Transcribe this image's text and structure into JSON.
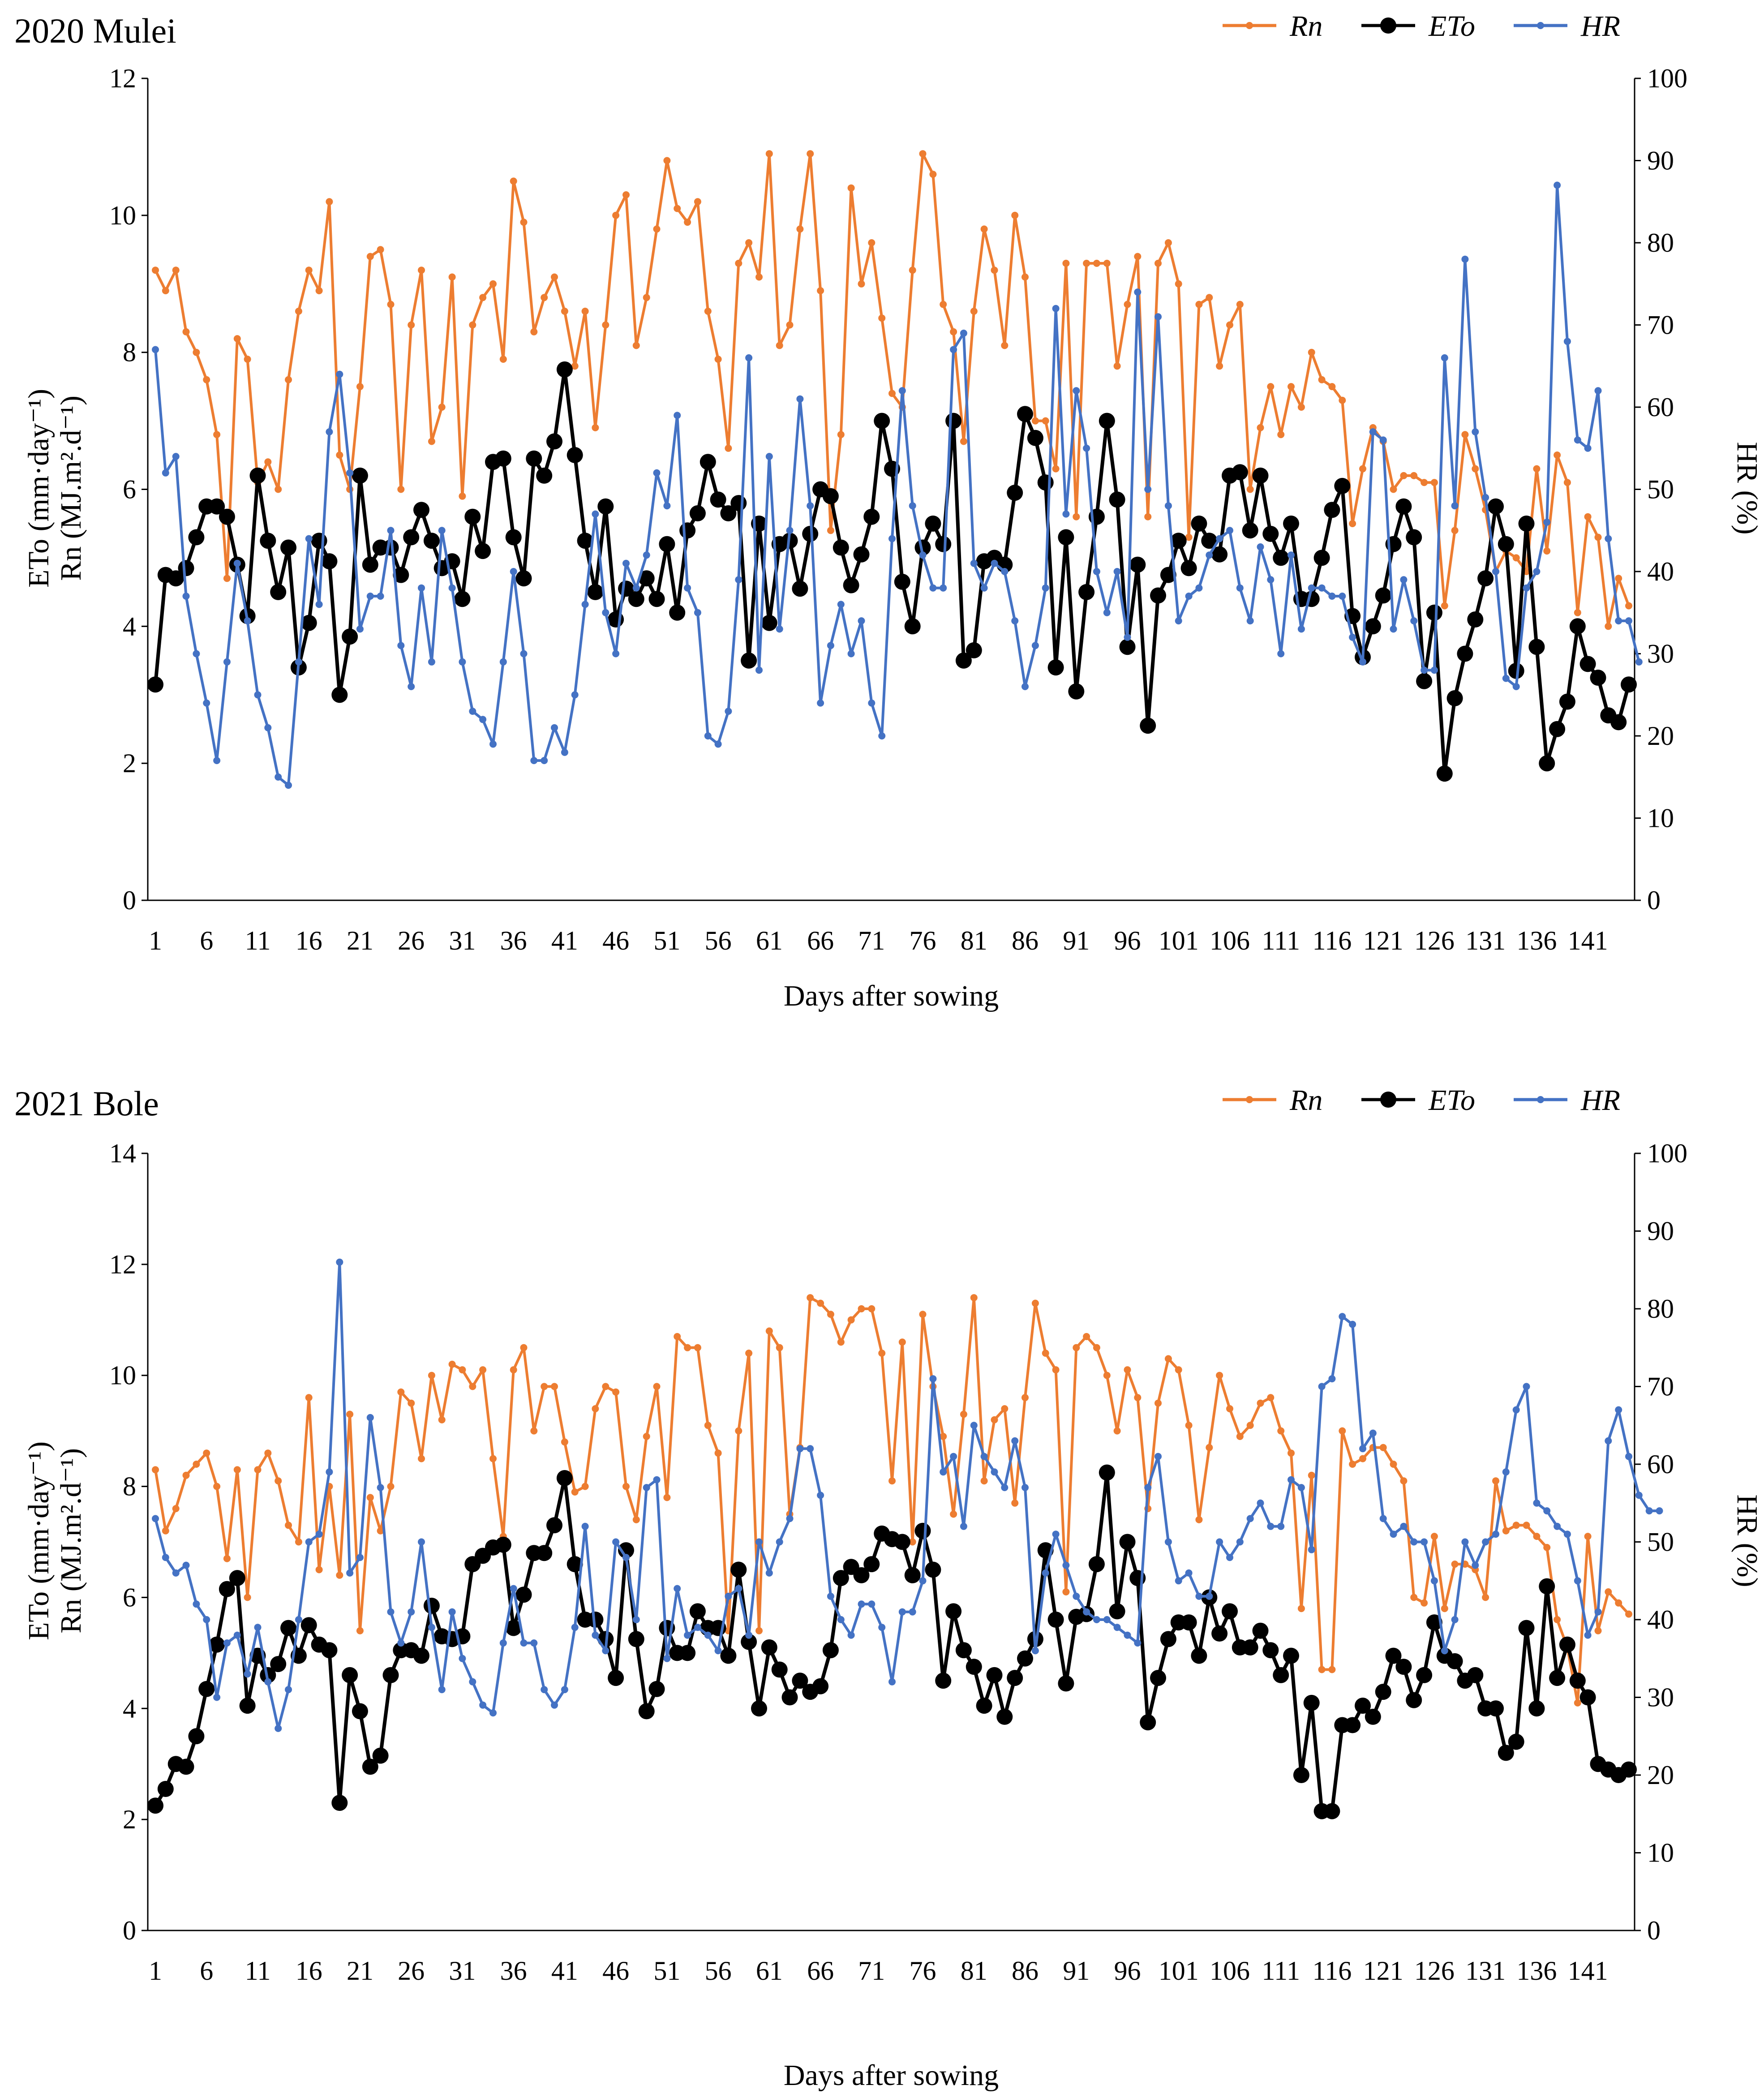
{
  "chart_data": [
    {
      "type": "line",
      "title": "2020  Mulei",
      "xlabel": "Days after sowing",
      "ylabel_line1": "ETo (mm·day⁻¹)",
      "ylabel_line2": "Rn (MJ.m².d⁻¹)",
      "ylabel_right": "HR (%)",
      "ylim": [
        0,
        12
      ],
      "yticks": [
        0,
        2,
        4,
        6,
        8,
        10,
        12
      ],
      "y2lim": [
        0,
        100
      ],
      "y2ticks": [
        0,
        10,
        20,
        30,
        40,
        50,
        60,
        70,
        80,
        90,
        100
      ],
      "xticks": [
        "1",
        "6",
        "11",
        "16",
        "21",
        "26",
        "31",
        "36",
        "41",
        "46",
        "51",
        "56",
        "61",
        "66",
        "71",
        "76",
        "81",
        "86",
        "91",
        "96",
        "101",
        "106",
        "111",
        "116",
        "121",
        "126",
        "131",
        "136",
        "141"
      ],
      "legend": [
        "Rn",
        "ETo",
        "HR"
      ],
      "colors": {
        "Rn": "#ED7D31",
        "ETo": "#000000",
        "HR": "#4472C4"
      },
      "series": [
        {
          "name": "Rn",
          "axis": "left",
          "values": [
            9.2,
            8.9,
            9.2,
            8.3,
            8.0,
            7.6,
            6.8,
            4.7,
            8.2,
            7.9,
            6.1,
            6.4,
            6.0,
            7.6,
            8.6,
            9.2,
            8.9,
            10.2,
            6.5,
            6.0,
            7.5,
            9.4,
            9.5,
            8.7,
            6.0,
            8.4,
            9.2,
            6.7,
            7.2,
            9.1,
            5.9,
            8.4,
            8.8,
            9.0,
            7.9,
            10.5,
            9.9,
            8.3,
            8.8,
            9.1,
            8.6,
            7.8,
            8.6,
            6.9,
            8.4,
            10.0,
            10.3,
            8.1,
            8.8,
            9.8,
            10.8,
            10.1,
            9.9,
            10.2,
            8.6,
            7.9,
            6.6,
            9.3,
            9.6,
            9.1,
            10.9,
            8.1,
            8.4,
            9.8,
            10.9,
            8.9,
            5.4,
            6.8,
            10.4,
            9.0,
            9.6,
            8.5,
            7.4,
            7.2,
            9.2,
            10.9,
            10.6,
            8.7,
            8.3,
            6.7,
            8.6,
            9.8,
            9.2,
            8.1,
            10.0,
            9.1,
            7.0,
            7.0,
            6.3,
            9.3,
            5.6,
            9.3,
            9.3,
            9.3,
            7.8,
            8.7,
            9.4,
            5.6,
            9.3,
            9.6,
            9.0,
            5.3,
            8.7,
            8.8,
            7.8,
            8.4,
            8.7,
            6.0,
            6.9,
            7.5,
            6.8,
            7.5,
            7.2,
            8.0,
            7.6,
            7.5,
            7.3,
            5.5,
            6.3,
            6.9,
            6.7,
            6.0,
            6.2,
            6.2,
            6.1,
            6.1,
            4.3,
            5.4,
            6.8,
            6.3,
            5.7,
            4.8,
            5.1,
            5.0,
            4.8,
            6.3,
            5.1,
            6.5,
            6.1,
            4.2,
            5.6,
            5.3,
            4.0,
            4.7,
            4.3
          ]
        },
        {
          "name": "ETo",
          "axis": "left",
          "values": [
            3.15,
            4.75,
            4.7,
            4.85,
            5.3,
            5.75,
            5.75,
            5.6,
            4.9,
            4.15,
            6.2,
            5.25,
            4.5,
            5.15,
            3.4,
            4.05,
            5.25,
            4.95,
            3.0,
            3.85,
            6.2,
            4.9,
            5.15,
            5.15,
            4.75,
            5.3,
            5.7,
            5.25,
            4.85,
            4.95,
            4.4,
            5.6,
            5.1,
            6.4,
            6.45,
            5.3,
            4.7,
            6.45,
            6.2,
            6.7,
            7.75,
            6.5,
            5.25,
            4.5,
            5.75,
            4.1,
            4.55,
            4.4,
            4.7,
            4.4,
            5.2,
            4.2,
            5.4,
            5.65,
            6.4,
            5.85,
            5.65,
            5.8,
            3.5,
            5.5,
            4.05,
            5.2,
            5.25,
            4.55,
            5.35,
            6.0,
            5.9,
            5.15,
            4.6,
            5.05,
            5.6,
            7.0,
            6.3,
            4.65,
            4.0,
            5.15,
            5.5,
            5.2,
            7.0,
            3.5,
            3.65,
            4.95,
            5.0,
            4.9,
            5.95,
            7.1,
            6.75,
            6.1,
            3.4,
            5.3,
            3.05,
            4.5,
            5.6,
            7.0,
            5.85,
            3.7,
            4.9,
            2.55,
            4.45,
            4.75,
            5.25,
            4.85,
            5.5,
            5.25,
            5.05,
            6.2,
            6.25,
            5.4,
            6.2,
            5.35,
            5.0,
            5.5,
            4.4,
            4.4,
            5.0,
            5.7,
            6.05,
            4.15,
            3.55,
            4.0,
            4.45,
            5.2,
            5.75,
            5.3,
            3.2,
            4.2,
            1.85,
            2.95,
            3.6,
            4.1,
            4.7,
            5.75,
            5.2,
            3.35,
            5.5,
            3.7,
            2.0,
            2.5,
            2.9,
            4.0,
            3.45,
            3.25,
            2.7,
            2.6,
            3.15
          ]
        },
        {
          "name": "HR",
          "axis": "right",
          "values": [
            67,
            52,
            54,
            37,
            30,
            24,
            17,
            29,
            41,
            34,
            25,
            21,
            15,
            14,
            29,
            44,
            36,
            57,
            64,
            52,
            33,
            37,
            37,
            45,
            31,
            26,
            38,
            29,
            45,
            38,
            29,
            23,
            22,
            19,
            29,
            40,
            30,
            17,
            17,
            21,
            18,
            25,
            36,
            47,
            35,
            30,
            41,
            38,
            42,
            52,
            48,
            59,
            38,
            35,
            20,
            19,
            23,
            39,
            66,
            28,
            54,
            33,
            45,
            61,
            48,
            24,
            31,
            36,
            30,
            34,
            24,
            20,
            44,
            62,
            48,
            42,
            38,
            38,
            67,
            69,
            41,
            38,
            41,
            40,
            34,
            26,
            31,
            38,
            72,
            47,
            62,
            55,
            40,
            35,
            40,
            32,
            74,
            50,
            71,
            48,
            34,
            37,
            38,
            42,
            44,
            45,
            38,
            34,
            43,
            39,
            30,
            42,
            33,
            38,
            38,
            37,
            37,
            32,
            29,
            57,
            56,
            33,
            39,
            34,
            28,
            28,
            66,
            48,
            78,
            57,
            49,
            40,
            27,
            26,
            38,
            40,
            46,
            87,
            68,
            56,
            55,
            62,
            44,
            34,
            34,
            29
          ]
        }
      ]
    },
    {
      "type": "line",
      "title": "2021   Bole",
      "xlabel": "Days after sowing",
      "ylabel_line1": "ETo (mm·day⁻¹)",
      "ylabel_line2": "Rn (MJ.m².d⁻¹)",
      "ylabel_right": "HR (%)",
      "ylim": [
        0,
        14
      ],
      "yticks": [
        0,
        2,
        4,
        6,
        8,
        10,
        12,
        14
      ],
      "y2lim": [
        0,
        100
      ],
      "y2ticks": [
        0,
        10,
        20,
        30,
        40,
        50,
        60,
        70,
        80,
        90,
        100
      ],
      "xticks": [
        "1",
        "6",
        "11",
        "16",
        "21",
        "26",
        "31",
        "36",
        "41",
        "46",
        "51",
        "56",
        "61",
        "66",
        "71",
        "76",
        "81",
        "86",
        "91",
        "96",
        "101",
        "106",
        "111",
        "116",
        "121",
        "126",
        "131",
        "136",
        "141"
      ],
      "legend": [
        "Rn",
        "ETo",
        "HR"
      ],
      "colors": {
        "Rn": "#ED7D31",
        "ETo": "#000000",
        "HR": "#4472C4"
      },
      "series": [
        {
          "name": "Rn",
          "axis": "left",
          "values": [
            8.3,
            7.2,
            7.6,
            8.2,
            8.4,
            8.6,
            8.0,
            6.7,
            8.3,
            6.0,
            8.3,
            8.6,
            8.1,
            7.3,
            7.0,
            9.6,
            6.5,
            8.0,
            6.4,
            9.3,
            5.4,
            7.8,
            7.2,
            8.0,
            9.7,
            9.5,
            8.5,
            10.0,
            9.2,
            10.2,
            10.1,
            9.8,
            10.1,
            8.5,
            7.1,
            10.1,
            10.5,
            9.0,
            9.8,
            9.8,
            8.8,
            7.9,
            8.0,
            9.4,
            9.8,
            9.7,
            8.0,
            7.4,
            8.9,
            9.8,
            7.8,
            10.7,
            10.5,
            10.5,
            9.1,
            8.6,
            5.4,
            9.0,
            10.4,
            5.4,
            10.8,
            10.5,
            7.5,
            8.7,
            11.4,
            11.3,
            11.1,
            10.6,
            11.0,
            11.2,
            11.2,
            10.4,
            8.1,
            10.6,
            7.0,
            11.1,
            9.8,
            8.9,
            7.5,
            9.3,
            11.4,
            8.1,
            9.2,
            9.4,
            7.7,
            9.6,
            11.3,
            10.4,
            10.1,
            6.1,
            10.5,
            10.7,
            10.5,
            10.0,
            9.0,
            10.1,
            9.6,
            7.6,
            9.5,
            10.3,
            10.1,
            9.1,
            7.4,
            8.7,
            10.0,
            9.4,
            8.9,
            9.1,
            9.5,
            9.6,
            9.0,
            8.6,
            5.8,
            8.2,
            4.7,
            4.7,
            9.0,
            8.4,
            8.5,
            8.7,
            8.7,
            8.4,
            8.1,
            6.0,
            5.9,
            7.1,
            5.8,
            6.6,
            6.6,
            6.5,
            6.0,
            8.1,
            7.2,
            7.3,
            7.3,
            7.1,
            6.9,
            5.6,
            5.1,
            4.1,
            7.1,
            5.4,
            6.1,
            5.9,
            5.7
          ]
        },
        {
          "name": "ETo",
          "axis": "left",
          "values": [
            2.25,
            2.55,
            3.0,
            2.95,
            3.5,
            4.35,
            5.15,
            6.15,
            6.35,
            4.05,
            4.95,
            4.6,
            4.8,
            5.45,
            4.95,
            5.5,
            5.15,
            5.05,
            2.3,
            4.6,
            3.95,
            2.95,
            3.15,
            4.6,
            5.05,
            5.05,
            4.95,
            5.85,
            5.3,
            5.25,
            5.3,
            6.6,
            6.75,
            6.9,
            6.95,
            5.45,
            6.05,
            6.8,
            6.8,
            7.3,
            8.15,
            6.6,
            5.6,
            5.6,
            5.25,
            4.55,
            6.85,
            5.25,
            3.95,
            4.35,
            5.45,
            5.0,
            5.0,
            5.75,
            5.45,
            5.45,
            4.95,
            6.5,
            5.2,
            4.0,
            5.1,
            4.7,
            4.2,
            4.5,
            4.3,
            4.4,
            5.05,
            6.35,
            6.55,
            6.4,
            6.6,
            7.15,
            7.05,
            7.0,
            6.4,
            7.2,
            6.5,
            4.5,
            5.75,
            5.05,
            4.75,
            4.05,
            4.6,
            3.85,
            4.55,
            4.9,
            5.25,
            6.85,
            5.6,
            4.45,
            5.65,
            5.7,
            6.6,
            8.25,
            5.75,
            7.0,
            6.35,
            3.75,
            4.55,
            5.25,
            5.55,
            5.55,
            4.95,
            6.0,
            5.35,
            5.75,
            5.1,
            5.1,
            5.4,
            5.05,
            4.6,
            4.95,
            2.8,
            4.1,
            2.15,
            2.15,
            3.7,
            3.7,
            4.05,
            3.85,
            4.3,
            4.95,
            4.75,
            4.15,
            4.6,
            5.55,
            4.95,
            4.85,
            4.5,
            4.6,
            4.0,
            4.0,
            3.2,
            3.4,
            5.45,
            4.0,
            6.2,
            4.55,
            5.15,
            4.5,
            4.2,
            3.0,
            2.9,
            2.8,
            2.9
          ]
        },
        {
          "name": "HR",
          "axis": "right",
          "values": [
            53,
            48,
            46,
            47,
            42,
            40,
            30,
            37,
            38,
            33,
            39,
            32,
            26,
            31,
            40,
            50,
            51,
            59,
            86,
            46,
            48,
            66,
            57,
            41,
            37,
            41,
            50,
            39,
            31,
            41,
            35,
            32,
            29,
            28,
            37,
            44,
            37,
            37,
            31,
            29,
            31,
            39,
            52,
            38,
            36,
            50,
            48,
            40,
            57,
            58,
            35,
            44,
            38,
            39,
            38,
            36,
            43,
            44,
            38,
            50,
            46,
            50,
            53,
            62,
            62,
            56,
            43,
            40,
            38,
            42,
            42,
            39,
            32,
            41,
            41,
            45,
            71,
            59,
            61,
            52,
            65,
            61,
            59,
            57,
            63,
            57,
            36,
            46,
            51,
            47,
            43,
            41,
            40,
            40,
            39,
            38,
            37,
            57,
            61,
            50,
            45,
            46,
            43,
            43,
            50,
            48,
            50,
            53,
            55,
            52,
            52,
            58,
            57,
            49,
            70,
            71,
            79,
            78,
            62,
            64,
            53,
            51,
            52,
            50,
            50,
            45,
            36,
            40,
            50,
            47,
            50,
            51,
            59,
            67,
            70,
            55,
            54,
            52,
            51,
            45,
            38,
            41,
            63,
            67,
            61,
            56,
            54,
            54
          ]
        }
      ]
    }
  ]
}
